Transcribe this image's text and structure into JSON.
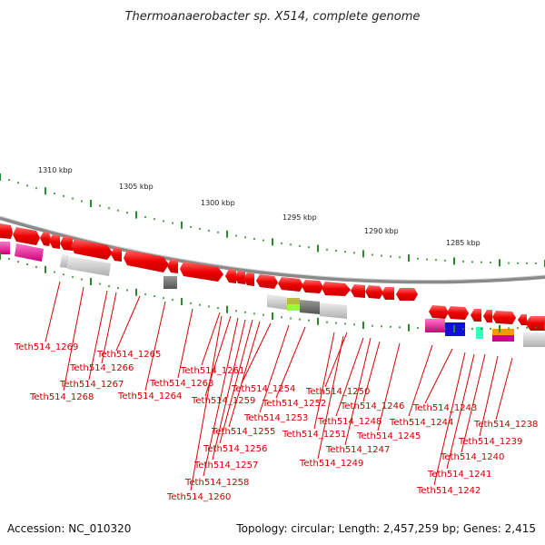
{
  "title": "Thermoanaerobacter sp. X514, complete genome",
  "footer": {
    "accession": "Accession: NC_010320",
    "topology": "Topology: circular; Length: 2,457,259 bp; Genes: 2,415"
  },
  "scale_labels": [
    "1310 kbp",
    "1305 kbp",
    "1300 kbp",
    "1295 kbp",
    "1290 kbp",
    "1285 kbp"
  ],
  "gene_labels": [
    "Teth514_1269",
    "Teth514_1268",
    "Teth514_1267",
    "Teth514_1266",
    "Teth514_1265",
    "Teth514_1264",
    "Teth514_1263",
    "Teth514_1261",
    "Teth514_1260",
    "Teth514_1259",
    "Teth514_1258",
    "Teth514_1257",
    "Teth514_1256",
    "Teth514_1255",
    "Teth514_1254",
    "Teth514_1253",
    "Teth514_1252",
    "Teth514_1251",
    "Teth514_1250",
    "Teth514_1249",
    "Teth514_1248",
    "Teth514_1247",
    "Teth514_1246",
    "Teth514_1245",
    "Teth514_1244",
    "Teth514_1243",
    "Teth514_1242",
    "Teth514_1241",
    "Teth514_1240",
    "Teth514_1239",
    "Teth514_1238"
  ],
  "colors": {
    "gene": "#ee0000",
    "label": "#cc0000",
    "tick": "#2a8a2a",
    "backbone": "#8a8a8a"
  }
}
